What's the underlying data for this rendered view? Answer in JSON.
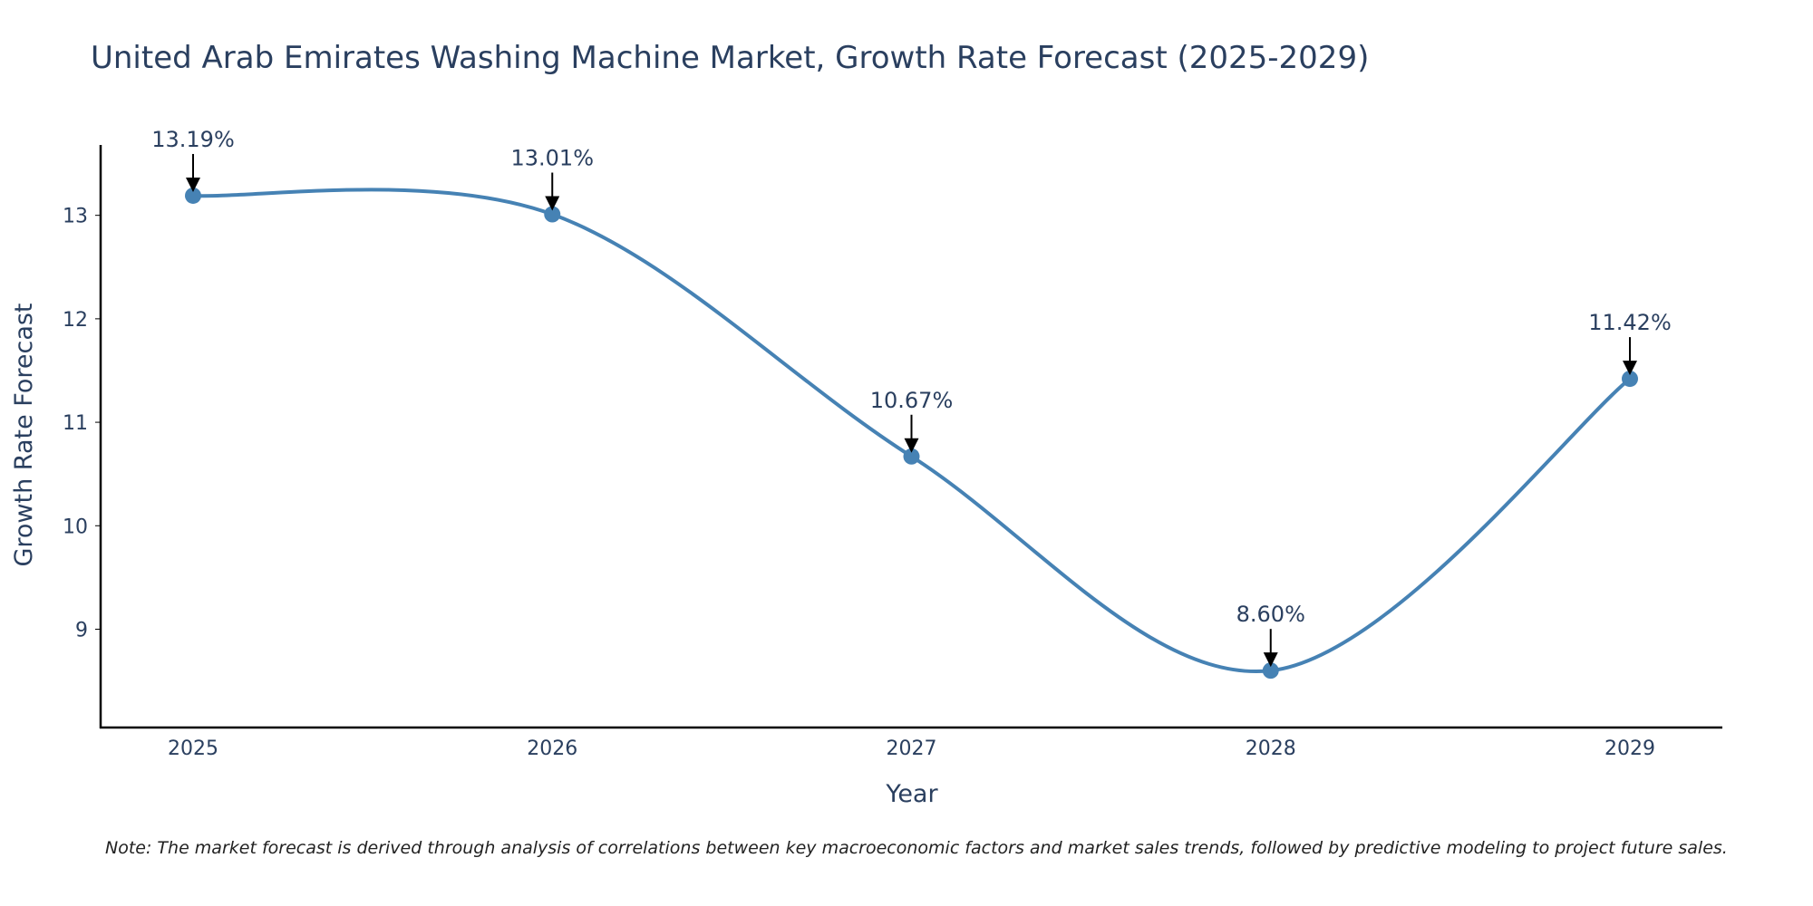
{
  "chart_data": {
    "type": "line",
    "title": "United Arab Emirates Washing Machine Market, Growth Rate Forecast (2025-2029)",
    "xlabel": "Year",
    "ylabel": "Growth Rate Forecast",
    "categories": [
      "2025",
      "2026",
      "2027",
      "2028",
      "2029"
    ],
    "values": [
      13.19,
      13.01,
      10.67,
      8.6,
      11.42
    ],
    "data_labels": [
      "13.19%",
      "13.01%",
      "10.67%",
      "8.60%",
      "11.42%"
    ],
    "yticks": [
      9,
      10,
      11,
      12,
      13
    ],
    "ylim": [
      8.05,
      13.68
    ],
    "grid": false,
    "note": "Note: The market forecast is derived through analysis of correlations between key macroeconomic factors and market sales trends, followed by predictive modeling to project future sales.",
    "colors": {
      "series": "#4682b4",
      "text": "#2a3f5f",
      "axis": "#000000"
    }
  }
}
